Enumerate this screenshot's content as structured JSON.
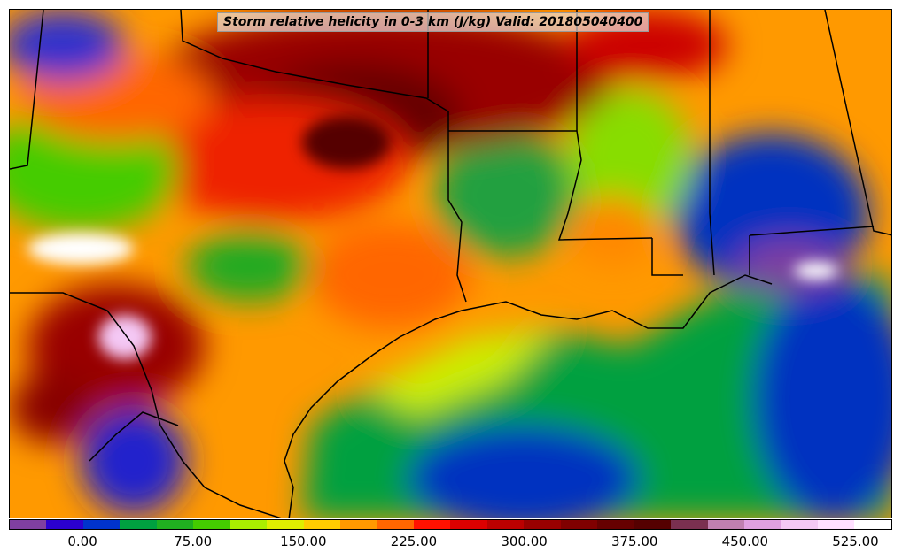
{
  "title": "Storm relative helicity in 0-3 km (J/kg) Valid: 201805040400",
  "colorbar": {
    "colors": [
      "#7f3fa0",
      "#2b00d0",
      "#0033cc",
      "#00a040",
      "#20b020",
      "#44cc00",
      "#aaee00",
      "#e0ee00",
      "#ffcc00",
      "#ff9900",
      "#ff6600",
      "#ff1100",
      "#dd0000",
      "#bb0000",
      "#990000",
      "#800000",
      "#660000",
      "#550000",
      "#7a3050",
      "#c080b0",
      "#e0a0e0",
      "#f4c8f4",
      "#ffe0ff",
      "#ffffff"
    ],
    "ticks": [
      "0.00",
      "75.00",
      "150.00",
      "225.00",
      "300.00",
      "375.00",
      "450.00",
      "525.00"
    ]
  },
  "regions": {
    "gulf_color": "#009a3c",
    "deep_blue": "#0030c0",
    "land_hot": "#cc1100"
  }
}
